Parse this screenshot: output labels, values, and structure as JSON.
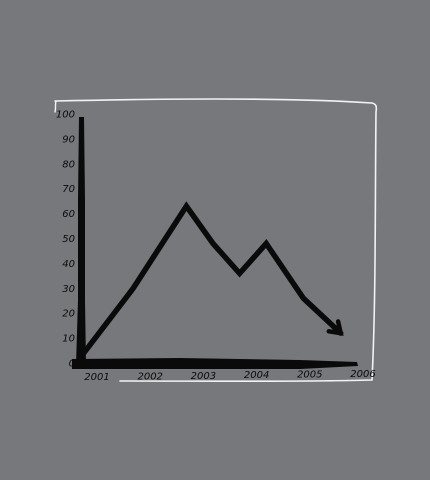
{
  "chart_data": {
    "type": "line",
    "style": "hand-drawn sketch",
    "x": [
      2001,
      2002,
      2003,
      2004,
      2005,
      2006
    ],
    "x_tick_labels": [
      "2001",
      "2002",
      "2003",
      "2004",
      "2005",
      "2006"
    ],
    "y_tick_labels": [
      "0",
      "10",
      "20",
      "30",
      "40",
      "50",
      "60",
      "70",
      "80",
      "90",
      "100"
    ],
    "ylim": [
      0,
      100
    ],
    "series": [
      {
        "points": [
          {
            "x": 2001.0,
            "y": 2
          },
          {
            "x": 2002.0,
            "y": 30
          },
          {
            "x": 2003.0,
            "y": 63
          },
          {
            "x": 2003.5,
            "y": 48
          },
          {
            "x": 2004.0,
            "y": 36
          },
          {
            "x": 2004.5,
            "y": 48
          },
          {
            "x": 2005.2,
            "y": 26
          },
          {
            "x": 2005.9,
            "y": 12
          }
        ],
        "ends_with_arrow": true
      }
    ],
    "colors": {
      "background": "#77787c",
      "frame": "#f2f2f2",
      "ink": "#0a0a0a"
    },
    "grid": false,
    "legend": "none"
  }
}
